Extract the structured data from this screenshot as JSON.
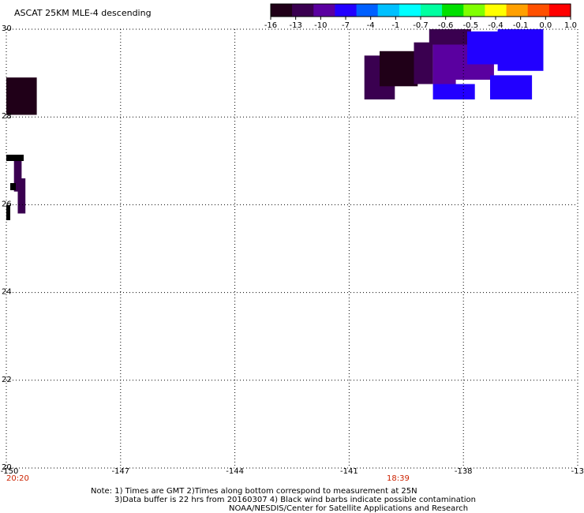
{
  "title": "ASCAT 25KM MLE-4 descending",
  "colorbar": {
    "labels": [
      "-16",
      "-13",
      "-10",
      "-7",
      "-4",
      "-1",
      "-0.7",
      "-0.6",
      "-0.5",
      "-0.4",
      "-0.1",
      "0.0",
      "1.0"
    ],
    "colors": [
      "#200018",
      "#3a0050",
      "#5a00a0",
      "#2200ff",
      "#0060ff",
      "#00c0ff",
      "#00ffff",
      "#00ffa0",
      "#00e000",
      "#80ff00",
      "#ffff00",
      "#ffa000",
      "#ff5000",
      "#ff0000"
    ]
  },
  "axes": {
    "x_ticks": [
      "-150",
      "-147",
      "-144",
      "-141",
      "-138",
      "-13"
    ],
    "y_ticks": [
      "30",
      "28",
      "26",
      "24",
      "22",
      "20"
    ]
  },
  "times": {
    "left": "20:20",
    "middle": "18:39"
  },
  "notes": [
    "Note: 1) Times are GMT 2)Times along bottom correspond to measurement at 25N",
    "3)Data buffer is 22 hrs from 20160307 4) Black wind barbs indicate possible contamination",
    "NOAA/NESDIS/Center for Satellite Applications and Research"
  ],
  "chart_data": {
    "type": "heatmap",
    "x_range": [
      -150,
      -135
    ],
    "y_range": [
      20,
      30
    ],
    "cells": [
      {
        "lon0": -150.0,
        "lon1": -149.2,
        "lat0": 28.05,
        "lat1": 28.9,
        "value": -16
      },
      {
        "lon0": -149.8,
        "lon1": -149.6,
        "lat0": 26.3,
        "lat1": 27.1,
        "value": -13
      },
      {
        "lon0": -149.7,
        "lon1": -149.5,
        "lat0": 25.8,
        "lat1": 26.6,
        "value": -13
      },
      {
        "lon0": -140.6,
        "lon1": -139.8,
        "lat0": 28.4,
        "lat1": 29.4,
        "value": -13
      },
      {
        "lon0": -140.2,
        "lon1": -139.2,
        "lat0": 28.7,
        "lat1": 29.5,
        "value": -16
      },
      {
        "lon0": -139.3,
        "lon1": -138.8,
        "lat0": 28.75,
        "lat1": 29.7,
        "value": -13
      },
      {
        "lon0": -138.8,
        "lon1": -138.2,
        "lat0": 28.75,
        "lat1": 29.75,
        "value": -10
      },
      {
        "lon0": -138.9,
        "lon1": -137.8,
        "lat0": 29.65,
        "lat1": 30.0,
        "value": -13
      },
      {
        "lon0": -138.2,
        "lon1": -137.2,
        "lat0": 28.85,
        "lat1": 29.65,
        "value": -10
      },
      {
        "lon0": -138.8,
        "lon1": -137.7,
        "lat0": 28.4,
        "lat1": 28.75,
        "value": -7
      },
      {
        "lon0": -137.9,
        "lon1": -137.0,
        "lat0": 29.2,
        "lat1": 29.95,
        "value": -7
      },
      {
        "lon0": -137.1,
        "lon1": -135.9,
        "lat0": 29.05,
        "lat1": 30.0,
        "value": -7
      },
      {
        "lon0": -137.9,
        "lon1": -137.2,
        "lat0": 28.95,
        "lat1": 29.2,
        "value": -10
      },
      {
        "lon0": -137.3,
        "lon1": -136.2,
        "lat0": 28.4,
        "lat1": 28.95,
        "value": -7
      }
    ]
  }
}
